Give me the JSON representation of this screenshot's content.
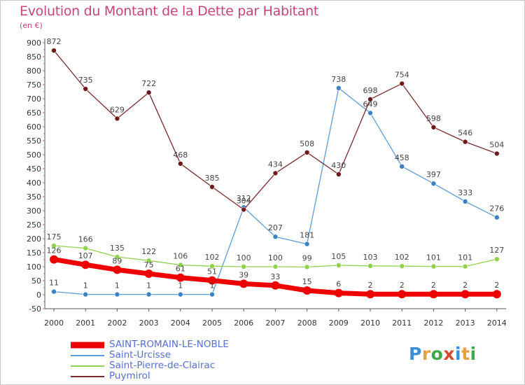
{
  "title": "Evolution du Montant de la Dette par Habitant",
  "subtitle": "(en €)",
  "logo": {
    "text": "Proxiti",
    "letters": [
      "P",
      "r",
      "o",
      "x",
      "i",
      "t",
      "i"
    ],
    "colors": [
      "#3a8fd6",
      "#e5a13a",
      "#3fa84a",
      "#d94a2a",
      "#3a8fd6",
      "#e5a13a",
      "#3fa84a"
    ]
  },
  "chart_data": {
    "type": "line",
    "title": "Evolution du Montant de la Dette par Habitant",
    "subtitle": "(en €)",
    "x": [
      "2000",
      "2001",
      "2002",
      "2003",
      "2004",
      "2005",
      "2006",
      "2007",
      "2008",
      "2009",
      "2010",
      "2011",
      "2012",
      "2013",
      "2014"
    ],
    "ylim": [
      -50,
      900
    ],
    "yticks": [
      -50,
      0,
      50,
      100,
      150,
      200,
      250,
      300,
      350,
      400,
      450,
      500,
      550,
      600,
      650,
      700,
      750,
      800,
      850,
      900
    ],
    "grid": false,
    "legend_position": "bottom-left",
    "series": [
      {
        "name": "SAINT-ROMAIN-LE-NOBLE",
        "color": "#ee0000",
        "line_width": 7,
        "marker_r": 6,
        "values": [
          126,
          107,
          89,
          75,
          61,
          51,
          39,
          33,
          15,
          6,
          2,
          2,
          2,
          2,
          2
        ]
      },
      {
        "name": "Saint-Urcisse",
        "color": "#5b9bd5",
        "marker_fill": "#3b82c4",
        "line_width": 1.3,
        "marker_r": 3.5,
        "values": [
          11,
          1,
          1,
          1,
          1,
          1,
          312,
          207,
          181,
          738,
          649,
          458,
          397,
          333,
          276
        ]
      },
      {
        "name": "Saint-Pierre-de-Clairac",
        "color": "#92d050",
        "marker_fill": "#8fd24a",
        "line_width": 1.3,
        "marker_r": 3.5,
        "values": [
          175,
          166,
          135,
          122,
          106,
          102,
          100,
          100,
          99,
          105,
          103,
          102,
          101,
          101,
          127
        ]
      },
      {
        "name": "Puymirol",
        "color": "#7b2a2a",
        "marker_fill": "#6e1a1a",
        "line_width": 1.3,
        "marker_r": 3.5,
        "values": [
          872,
          735,
          629,
          722,
          468,
          385,
          304,
          434,
          508,
          430,
          698,
          754,
          598,
          546,
          504
        ]
      }
    ]
  }
}
